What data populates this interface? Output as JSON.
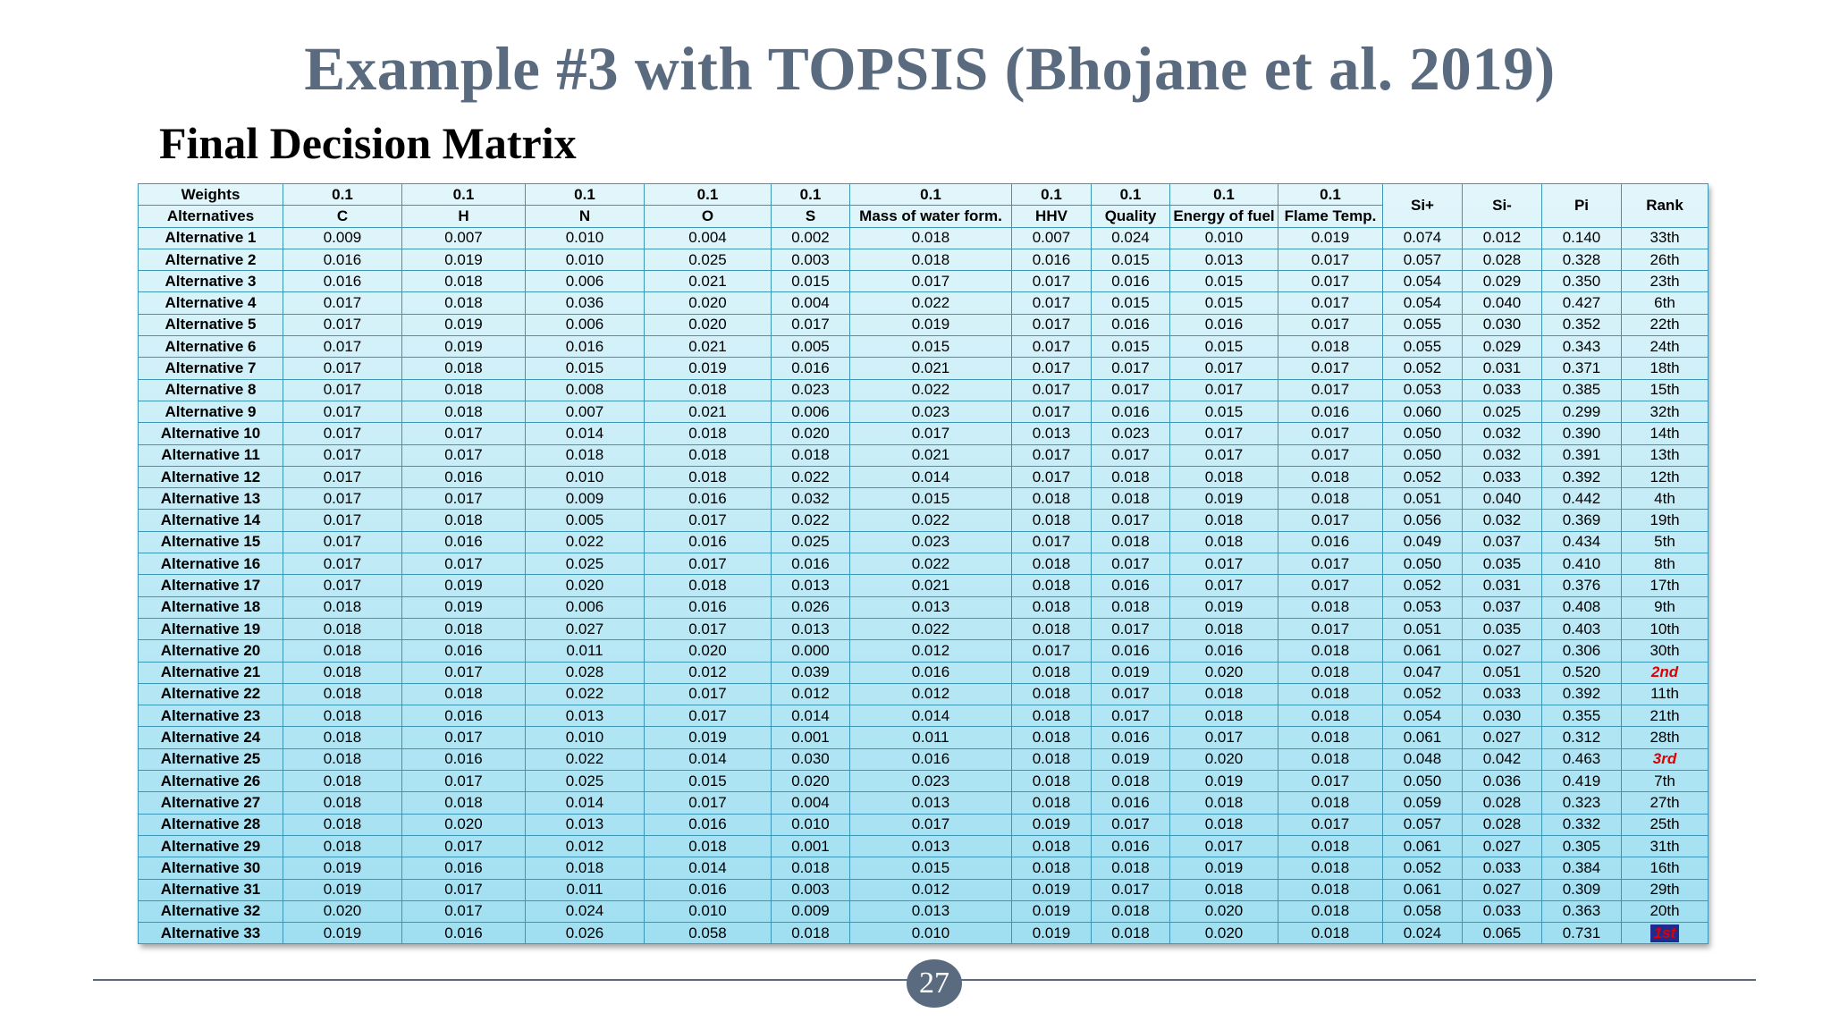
{
  "title": "Example #3 with TOPSIS (Bhojane et al. 2019)",
  "subtitle": "Final Decision Matrix",
  "page_number": "27",
  "table": {
    "weights_label": "Weights",
    "alternatives_label": "Alternatives",
    "weights": [
      "0.1",
      "0.1",
      "0.1",
      "0.1",
      "0.1",
      "0.1",
      "0.1",
      "0.1",
      "0.1",
      "0.1"
    ],
    "criteria": [
      "C",
      "H",
      "N",
      "O",
      "S",
      "Mass of water form.",
      "HHV",
      "Quality",
      "Energy of fuel",
      "Flame Temp."
    ],
    "extra_headers": [
      "Si+",
      "Si-",
      "Pi",
      "Rank"
    ],
    "rows": [
      [
        "Alternative 1",
        "0.009",
        "0.007",
        "0.010",
        "0.004",
        "0.002",
        "0.018",
        "0.007",
        "0.024",
        "0.010",
        "0.019",
        "0.074",
        "0.012",
        "0.140",
        "33th"
      ],
      [
        "Alternative 2",
        "0.016",
        "0.019",
        "0.010",
        "0.025",
        "0.003",
        "0.018",
        "0.016",
        "0.015",
        "0.013",
        "0.017",
        "0.057",
        "0.028",
        "0.328",
        "26th"
      ],
      [
        "Alternative 3",
        "0.016",
        "0.018",
        "0.006",
        "0.021",
        "0.015",
        "0.017",
        "0.017",
        "0.016",
        "0.015",
        "0.017",
        "0.054",
        "0.029",
        "0.350",
        "23th"
      ],
      [
        "Alternative 4",
        "0.017",
        "0.018",
        "0.036",
        "0.020",
        "0.004",
        "0.022",
        "0.017",
        "0.015",
        "0.015",
        "0.017",
        "0.054",
        "0.040",
        "0.427",
        "6th"
      ],
      [
        "Alternative 5",
        "0.017",
        "0.019",
        "0.006",
        "0.020",
        "0.017",
        "0.019",
        "0.017",
        "0.016",
        "0.016",
        "0.017",
        "0.055",
        "0.030",
        "0.352",
        "22th"
      ],
      [
        "Alternative 6",
        "0.017",
        "0.019",
        "0.016",
        "0.021",
        "0.005",
        "0.015",
        "0.017",
        "0.015",
        "0.015",
        "0.018",
        "0.055",
        "0.029",
        "0.343",
        "24th"
      ],
      [
        "Alternative 7",
        "0.017",
        "0.018",
        "0.015",
        "0.019",
        "0.016",
        "0.021",
        "0.017",
        "0.017",
        "0.017",
        "0.017",
        "0.052",
        "0.031",
        "0.371",
        "18th"
      ],
      [
        "Alternative 8",
        "0.017",
        "0.018",
        "0.008",
        "0.018",
        "0.023",
        "0.022",
        "0.017",
        "0.017",
        "0.017",
        "0.017",
        "0.053",
        "0.033",
        "0.385",
        "15th"
      ],
      [
        "Alternative 9",
        "0.017",
        "0.018",
        "0.007",
        "0.021",
        "0.006",
        "0.023",
        "0.017",
        "0.016",
        "0.015",
        "0.016",
        "0.060",
        "0.025",
        "0.299",
        "32th"
      ],
      [
        "Alternative 10",
        "0.017",
        "0.017",
        "0.014",
        "0.018",
        "0.020",
        "0.017",
        "0.013",
        "0.023",
        "0.017",
        "0.017",
        "0.050",
        "0.032",
        "0.390",
        "14th"
      ],
      [
        "Alternative 11",
        "0.017",
        "0.017",
        "0.018",
        "0.018",
        "0.018",
        "0.021",
        "0.017",
        "0.017",
        "0.017",
        "0.017",
        "0.050",
        "0.032",
        "0.391",
        "13th"
      ],
      [
        "Alternative 12",
        "0.017",
        "0.016",
        "0.010",
        "0.018",
        "0.022",
        "0.014",
        "0.017",
        "0.018",
        "0.018",
        "0.018",
        "0.052",
        "0.033",
        "0.392",
        "12th"
      ],
      [
        "Alternative 13",
        "0.017",
        "0.017",
        "0.009",
        "0.016",
        "0.032",
        "0.015",
        "0.018",
        "0.018",
        "0.019",
        "0.018",
        "0.051",
        "0.040",
        "0.442",
        "4th"
      ],
      [
        "Alternative 14",
        "0.017",
        "0.018",
        "0.005",
        "0.017",
        "0.022",
        "0.022",
        "0.018",
        "0.017",
        "0.018",
        "0.017",
        "0.056",
        "0.032",
        "0.369",
        "19th"
      ],
      [
        "Alternative 15",
        "0.017",
        "0.016",
        "0.022",
        "0.016",
        "0.025",
        "0.023",
        "0.017",
        "0.018",
        "0.018",
        "0.016",
        "0.049",
        "0.037",
        "0.434",
        "5th"
      ],
      [
        "Alternative 16",
        "0.017",
        "0.017",
        "0.025",
        "0.017",
        "0.016",
        "0.022",
        "0.018",
        "0.017",
        "0.017",
        "0.017",
        "0.050",
        "0.035",
        "0.410",
        "8th"
      ],
      [
        "Alternative 17",
        "0.017",
        "0.019",
        "0.020",
        "0.018",
        "0.013",
        "0.021",
        "0.018",
        "0.016",
        "0.017",
        "0.017",
        "0.052",
        "0.031",
        "0.376",
        "17th"
      ],
      [
        "Alternative 18",
        "0.018",
        "0.019",
        "0.006",
        "0.016",
        "0.026",
        "0.013",
        "0.018",
        "0.018",
        "0.019",
        "0.018",
        "0.053",
        "0.037",
        "0.408",
        "9th"
      ],
      [
        "Alternative 19",
        "0.018",
        "0.018",
        "0.027",
        "0.017",
        "0.013",
        "0.022",
        "0.018",
        "0.017",
        "0.018",
        "0.017",
        "0.051",
        "0.035",
        "0.403",
        "10th"
      ],
      [
        "Alternative 20",
        "0.018",
        "0.016",
        "0.011",
        "0.020",
        "0.000",
        "0.012",
        "0.017",
        "0.016",
        "0.016",
        "0.018",
        "0.061",
        "0.027",
        "0.306",
        "30th"
      ],
      [
        "Alternative 21",
        "0.018",
        "0.017",
        "0.028",
        "0.012",
        "0.039",
        "0.016",
        "0.018",
        "0.019",
        "0.020",
        "0.018",
        "0.047",
        "0.051",
        "0.520",
        "2nd"
      ],
      [
        "Alternative 22",
        "0.018",
        "0.018",
        "0.022",
        "0.017",
        "0.012",
        "0.012",
        "0.018",
        "0.017",
        "0.018",
        "0.018",
        "0.052",
        "0.033",
        "0.392",
        "11th"
      ],
      [
        "Alternative 23",
        "0.018",
        "0.016",
        "0.013",
        "0.017",
        "0.014",
        "0.014",
        "0.018",
        "0.017",
        "0.018",
        "0.018",
        "0.054",
        "0.030",
        "0.355",
        "21th"
      ],
      [
        "Alternative 24",
        "0.018",
        "0.017",
        "0.010",
        "0.019",
        "0.001",
        "0.011",
        "0.018",
        "0.016",
        "0.017",
        "0.018",
        "0.061",
        "0.027",
        "0.312",
        "28th"
      ],
      [
        "Alternative 25",
        "0.018",
        "0.016",
        "0.022",
        "0.014",
        "0.030",
        "0.016",
        "0.018",
        "0.019",
        "0.020",
        "0.018",
        "0.048",
        "0.042",
        "0.463",
        "3rd"
      ],
      [
        "Alternative 26",
        "0.018",
        "0.017",
        "0.025",
        "0.015",
        "0.020",
        "0.023",
        "0.018",
        "0.018",
        "0.019",
        "0.017",
        "0.050",
        "0.036",
        "0.419",
        "7th"
      ],
      [
        "Alternative 27",
        "0.018",
        "0.018",
        "0.014",
        "0.017",
        "0.004",
        "0.013",
        "0.018",
        "0.016",
        "0.018",
        "0.018",
        "0.059",
        "0.028",
        "0.323",
        "27th"
      ],
      [
        "Alternative 28",
        "0.018",
        "0.020",
        "0.013",
        "0.016",
        "0.010",
        "0.017",
        "0.019",
        "0.017",
        "0.018",
        "0.017",
        "0.057",
        "0.028",
        "0.332",
        "25th"
      ],
      [
        "Alternative 29",
        "0.018",
        "0.017",
        "0.012",
        "0.018",
        "0.001",
        "0.013",
        "0.018",
        "0.016",
        "0.017",
        "0.018",
        "0.061",
        "0.027",
        "0.305",
        "31th"
      ],
      [
        "Alternative 30",
        "0.019",
        "0.016",
        "0.018",
        "0.014",
        "0.018",
        "0.015",
        "0.018",
        "0.018",
        "0.019",
        "0.018",
        "0.052",
        "0.033",
        "0.384",
        "16th"
      ],
      [
        "Alternative 31",
        "0.019",
        "0.017",
        "0.011",
        "0.016",
        "0.003",
        "0.012",
        "0.019",
        "0.017",
        "0.018",
        "0.018",
        "0.061",
        "0.027",
        "0.309",
        "29th"
      ],
      [
        "Alternative 32",
        "0.020",
        "0.017",
        "0.024",
        "0.010",
        "0.009",
        "0.013",
        "0.019",
        "0.018",
        "0.020",
        "0.018",
        "0.058",
        "0.033",
        "0.363",
        "20th"
      ],
      [
        "Alternative 33",
        "0.019",
        "0.016",
        "0.026",
        "0.058",
        "0.018",
        "0.010",
        "0.019",
        "0.018",
        "0.020",
        "0.018",
        "0.024",
        "0.065",
        "0.731",
        "1st"
      ]
    ],
    "highlight_red": [
      "2nd",
      "3rd"
    ],
    "highlight_first": "1st"
  },
  "colors": {
    "title": "#5a6b80",
    "border": "#3d96b5",
    "highlight_text": "#e00000",
    "highlight_bg": "#1f2b8f"
  }
}
